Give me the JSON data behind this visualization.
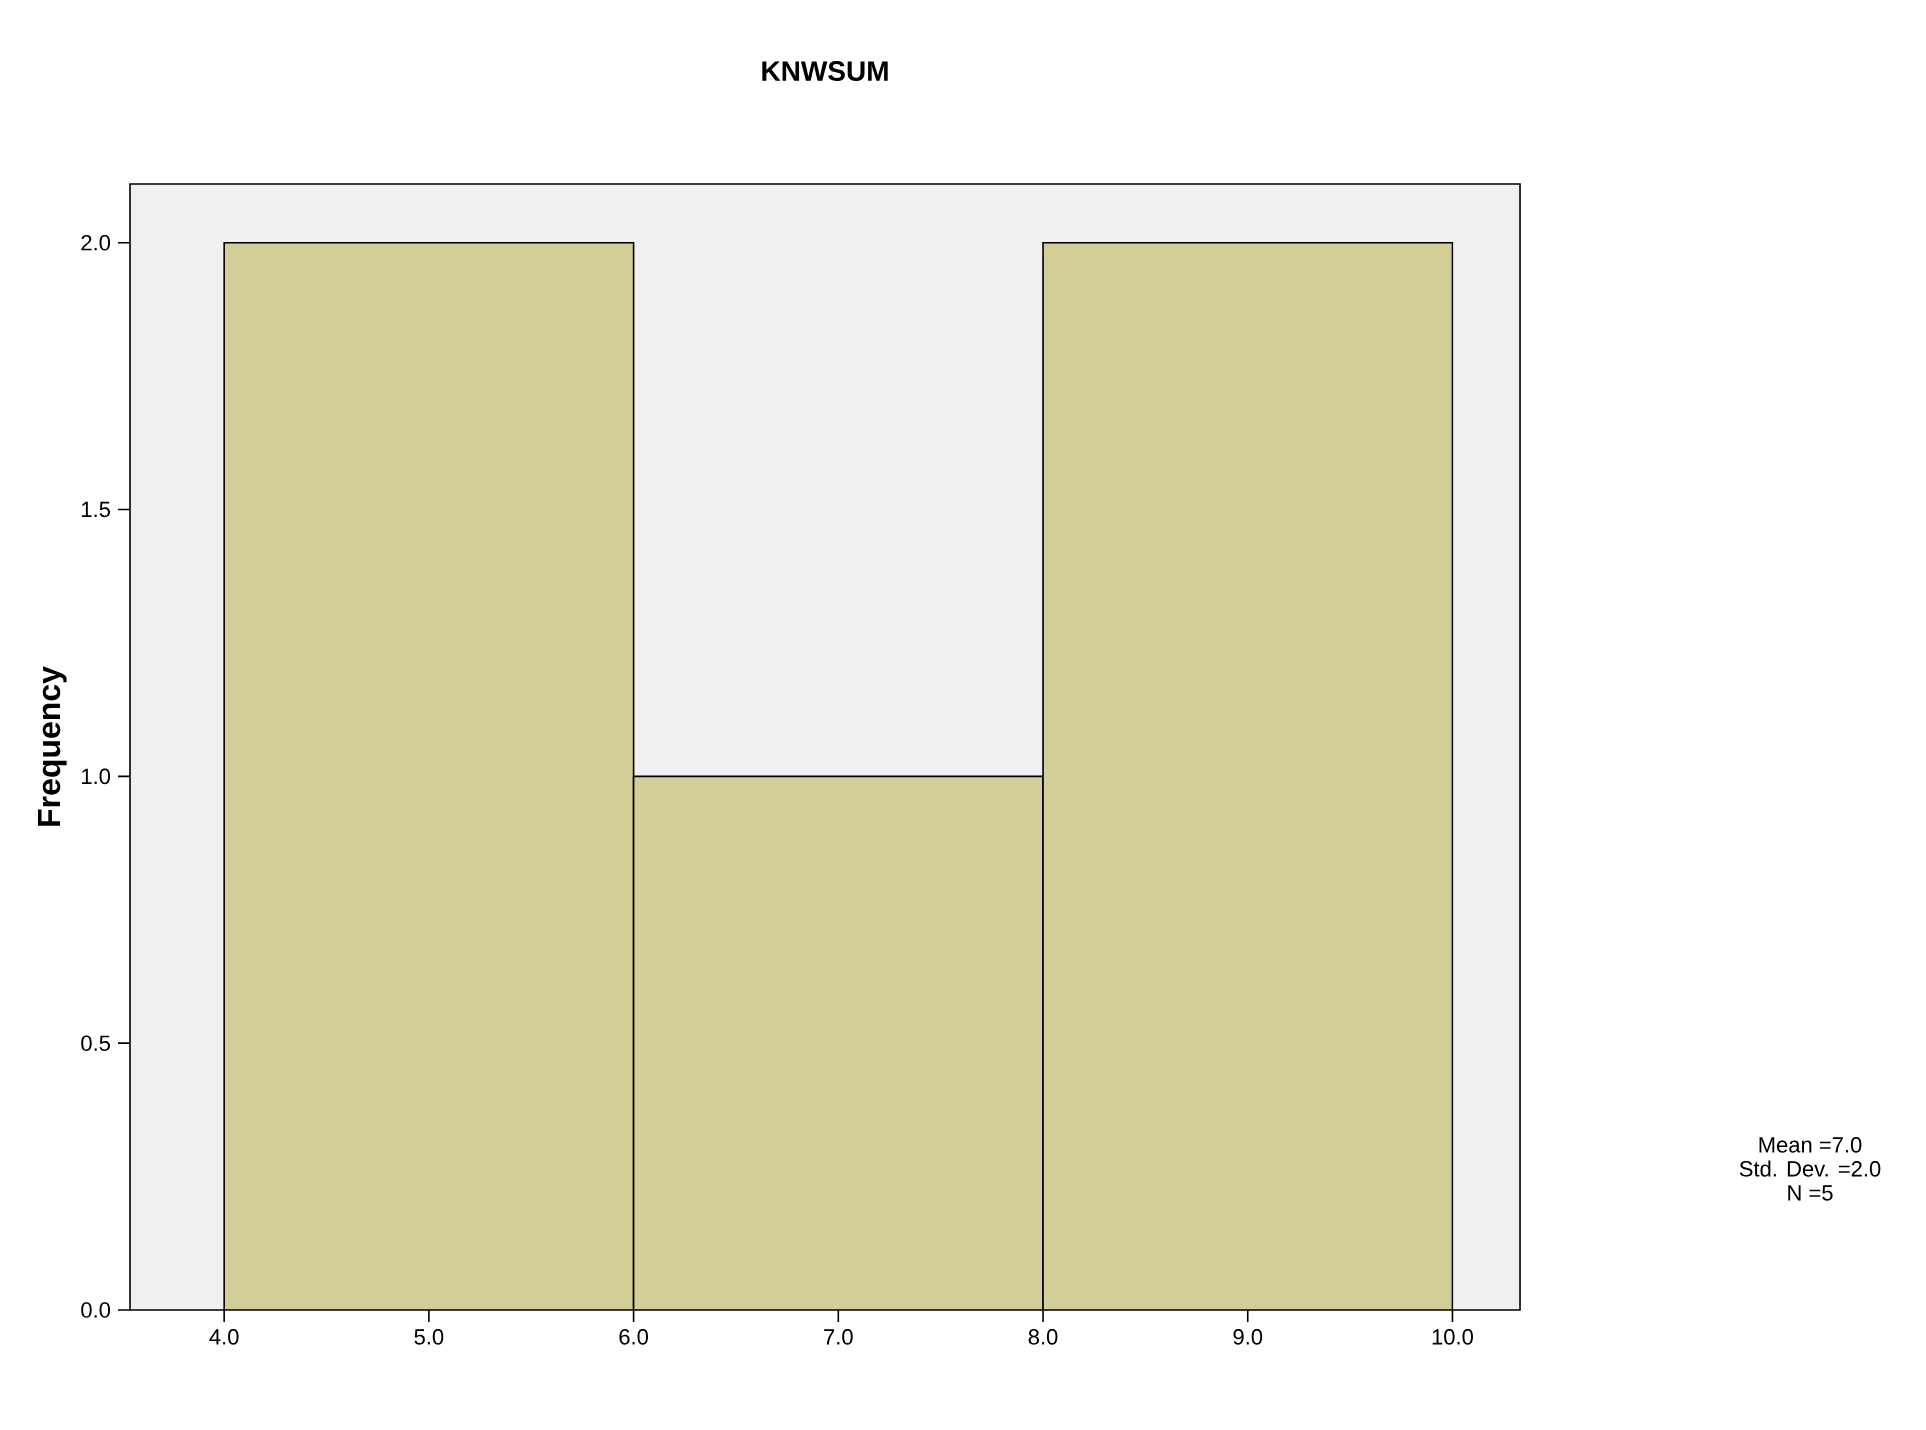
{
  "chart_data": {
    "type": "histogram",
    "title": "KNWSUM",
    "ylabel": "Frequency",
    "bins": [
      4,
      6,
      8,
      10
    ],
    "values": [
      2,
      1,
      2
    ],
    "color": "#d3ce97",
    "xlim": [
      3.54,
      10.33
    ],
    "ylim": [
      0,
      2.11
    ],
    "xticks": [
      {
        "value": 4,
        "label": "4.0"
      },
      {
        "value": 5,
        "label": "5.0"
      },
      {
        "value": 6,
        "label": "6.0"
      },
      {
        "value": 7,
        "label": "7.0"
      },
      {
        "value": 8,
        "label": "8.0"
      },
      {
        "value": 9,
        "label": "9.0"
      },
      {
        "value": 10,
        "label": "10.0"
      }
    ],
    "yticks": [
      {
        "value": 0,
        "label": "0.0"
      },
      {
        "value": 0.5,
        "label": "0.5"
      },
      {
        "value": 1,
        "label": "1.0"
      },
      {
        "value": 1.5,
        "label": "1.5"
      },
      {
        "value": 2,
        "label": "2.0"
      }
    ],
    "annotations": [
      "Mean =7.0",
      "Std. Dev. =2.0",
      "N =5"
    ],
    "grid": false
  }
}
